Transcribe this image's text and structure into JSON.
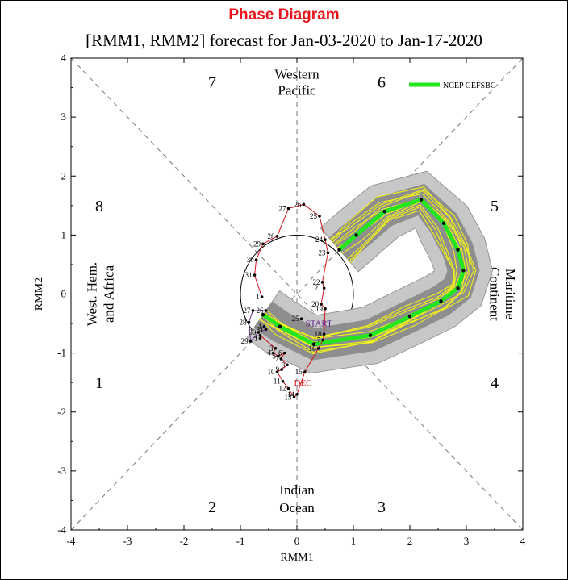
{
  "heading": "Phase Diagram",
  "title": "[RMM1, RMM2] forecast for Jan-03-2020 to Jan-17-2020",
  "chart_data": {
    "type": "scatter",
    "xlabel": "RMM1",
    "ylabel": "RMM2",
    "xlim": [
      -4,
      4
    ],
    "ylim": [
      -4,
      4
    ],
    "xticks": [
      "-4",
      "-3",
      "-2",
      "-1",
      "0",
      "1",
      "2",
      "3",
      "4"
    ],
    "yticks": [
      "4",
      "3",
      "2",
      "1",
      "0",
      "-1",
      "-2",
      "-3",
      "-4"
    ],
    "phases": [
      {
        "label": "1",
        "x": -3.5,
        "y": -1.5
      },
      {
        "label": "2",
        "x": -1.5,
        "y": -3.6
      },
      {
        "label": "3",
        "x": 1.5,
        "y": -3.6
      },
      {
        "label": "4",
        "x": 3.5,
        "y": -1.5
      },
      {
        "label": "5",
        "x": 3.5,
        "y": 1.5
      },
      {
        "label": "6",
        "x": 1.5,
        "y": 3.6
      },
      {
        "label": "7",
        "x": -1.5,
        "y": 3.6
      },
      {
        "label": "8",
        "x": -3.5,
        "y": 1.5
      }
    ],
    "regions": {
      "top": [
        "Western",
        "Pacific"
      ],
      "bottom": [
        "Indian",
        "Ocean"
      ],
      "left": [
        "West. Hem.",
        "and Africa"
      ],
      "right": [
        "Maritime",
        "Continent"
      ]
    },
    "legend": {
      "label": "NCEP GEFSBC",
      "color": "#22e61e",
      "position": "top-right"
    },
    "observed_red": [
      {
        "label": "1",
        "x": -0.65,
        "y": -0.75
      },
      {
        "label": "2",
        "x": -0.65,
        "y": -0.7
      },
      {
        "label": "3",
        "x": -0.38,
        "y": -0.92
      },
      {
        "label": "4",
        "x": -0.42,
        "y": -1.0
      },
      {
        "label": "5",
        "x": -0.33,
        "y": -1.05
      },
      {
        "label": "6",
        "x": -0.22,
        "y": -1.0
      },
      {
        "label": "7",
        "x": -0.28,
        "y": -1.1
      },
      {
        "label": "8",
        "x": -0.17,
        "y": -1.2
      },
      {
        "label": "9",
        "x": -0.27,
        "y": -1.28
      },
      {
        "label": "10",
        "x": -0.35,
        "y": -1.32
      },
      {
        "label": "11",
        "x": -0.25,
        "y": -1.48
      },
      {
        "label": "12",
        "x": -0.15,
        "y": -1.6
      },
      {
        "label": "13",
        "x": -0.05,
        "y": -1.75
      },
      {
        "label": "14",
        "x": 0.0,
        "y": -1.7
      },
      {
        "label": "15",
        "x": 0.14,
        "y": -1.32
      },
      {
        "label": "16",
        "x": 0.38,
        "y": -0.92
      },
      {
        "label": "17",
        "x": 0.46,
        "y": -0.78
      },
      {
        "label": "18",
        "x": 0.48,
        "y": -0.68
      },
      {
        "label": "19",
        "x": 0.5,
        "y": -0.25
      },
      {
        "label": "20",
        "x": 0.43,
        "y": -0.17
      },
      {
        "label": "21",
        "x": 0.48,
        "y": 0.1
      },
      {
        "label": "22",
        "x": 0.45,
        "y": 0.2
      },
      {
        "label": "23",
        "x": 0.55,
        "y": 0.7
      },
      {
        "label": "24",
        "x": 0.5,
        "y": 0.92
      },
      {
        "label": "25",
        "x": 0.4,
        "y": 1.32
      },
      {
        "label": "26",
        "x": 0.12,
        "y": 1.52
      },
      {
        "label": "27",
        "x": -0.15,
        "y": 1.45
      },
      {
        "label": "28",
        "x": -0.35,
        "y": 0.98
      },
      {
        "label": "29",
        "x": -0.6,
        "y": 0.85
      },
      {
        "label": "30",
        "x": -0.72,
        "y": 0.58
      },
      {
        "label": "31",
        "x": -0.75,
        "y": 0.32
      },
      {
        "label": "1",
        "x": -0.62,
        "y": -0.05
      }
    ],
    "observed_purple": [
      {
        "label": "26",
        "x": -0.55,
        "y": -0.28
      },
      {
        "label": "27",
        "x": -0.78,
        "y": -0.28
      },
      {
        "label": "28",
        "x": -0.85,
        "y": -0.48
      },
      {
        "label": "29",
        "x": -0.82,
        "y": -0.8
      },
      {
        "label": "30",
        "x": -0.68,
        "y": -0.65
      },
      {
        "label": "31",
        "x": -0.55,
        "y": -0.6
      },
      {
        "label": "1",
        "x": -0.58,
        "y": -0.55
      },
      {
        "label": "25",
        "x": 0.08,
        "y": -0.42
      }
    ],
    "markers": {
      "start": "START",
      "dec": "DEC"
    },
    "ensemble_mean": [
      {
        "x": -0.6,
        "y": -0.35
      },
      {
        "x": -0.3,
        "y": -0.55
      },
      {
        "x": 0.3,
        "y": -0.85
      },
      {
        "x": 1.3,
        "y": -0.7
      },
      {
        "x": 2.0,
        "y": -0.38
      },
      {
        "x": 2.55,
        "y": -0.12
      },
      {
        "x": 2.85,
        "y": 0.1
      },
      {
        "x": 2.95,
        "y": 0.4
      },
      {
        "x": 2.85,
        "y": 0.75
      },
      {
        "x": 2.6,
        "y": 1.2
      },
      {
        "x": 2.2,
        "y": 1.6
      },
      {
        "x": 1.55,
        "y": 1.4
      },
      {
        "x": 1.05,
        "y": 1.0
      },
      {
        "x": 0.75,
        "y": 0.75
      }
    ]
  }
}
